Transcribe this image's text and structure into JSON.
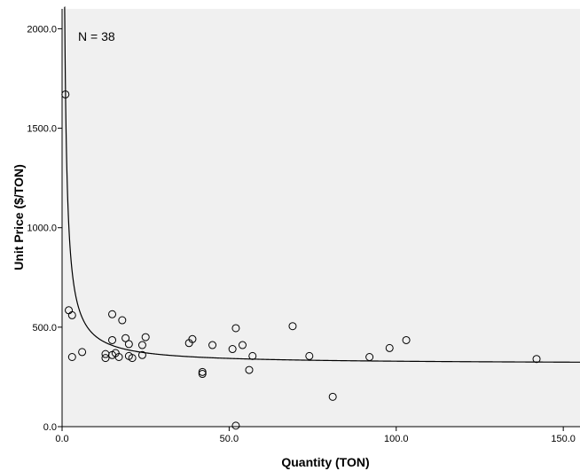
{
  "chart_data": {
    "type": "scatter",
    "xlabel": "Quantity (TON)",
    "ylabel": "Unit Price ($/TON)",
    "annotation": "N = 38",
    "xlim": [
      0,
      155
    ],
    "ylim": [
      0,
      2100
    ],
    "x_ticks": [
      0,
      50,
      100,
      150
    ],
    "x_tick_labels": [
      "0.0",
      "50.0",
      "100.0",
      "150.0"
    ],
    "y_ticks": [
      0,
      500,
      1000,
      1500,
      2000
    ],
    "y_tick_labels": [
      "0.0",
      "500.0",
      "1000.0",
      "1500.0",
      "2000.0"
    ],
    "grid": false,
    "plot_background": "#f0f0f0",
    "marker_color": "#000000",
    "points": [
      {
        "x": 1,
        "y": 1670
      },
      {
        "x": 2,
        "y": 585
      },
      {
        "x": 3,
        "y": 560
      },
      {
        "x": 3,
        "y": 350
      },
      {
        "x": 6,
        "y": 375
      },
      {
        "x": 13,
        "y": 365
      },
      {
        "x": 13,
        "y": 345
      },
      {
        "x": 15,
        "y": 565
      },
      {
        "x": 15,
        "y": 435
      },
      {
        "x": 15,
        "y": 360
      },
      {
        "x": 16,
        "y": 370
      },
      {
        "x": 17,
        "y": 350
      },
      {
        "x": 18,
        "y": 535
      },
      {
        "x": 19,
        "y": 445
      },
      {
        "x": 20,
        "y": 415
      },
      {
        "x": 20,
        "y": 355
      },
      {
        "x": 21,
        "y": 345
      },
      {
        "x": 24,
        "y": 410
      },
      {
        "x": 24,
        "y": 360
      },
      {
        "x": 25,
        "y": 450
      },
      {
        "x": 38,
        "y": 420
      },
      {
        "x": 39,
        "y": 440
      },
      {
        "x": 42,
        "y": 275
      },
      {
        "x": 42,
        "y": 265
      },
      {
        "x": 45,
        "y": 410
      },
      {
        "x": 51,
        "y": 390
      },
      {
        "x": 52,
        "y": 495
      },
      {
        "x": 52,
        "y": 5
      },
      {
        "x": 54,
        "y": 410
      },
      {
        "x": 56,
        "y": 285
      },
      {
        "x": 57,
        "y": 355
      },
      {
        "x": 69,
        "y": 505
      },
      {
        "x": 74,
        "y": 355
      },
      {
        "x": 81,
        "y": 150
      },
      {
        "x": 92,
        "y": 350
      },
      {
        "x": 98,
        "y": 395
      },
      {
        "x": 103,
        "y": 435
      },
      {
        "x": 142,
        "y": 340
      }
    ],
    "fit_line": {
      "type": "inverse",
      "a": 315,
      "b": 1400
    }
  }
}
